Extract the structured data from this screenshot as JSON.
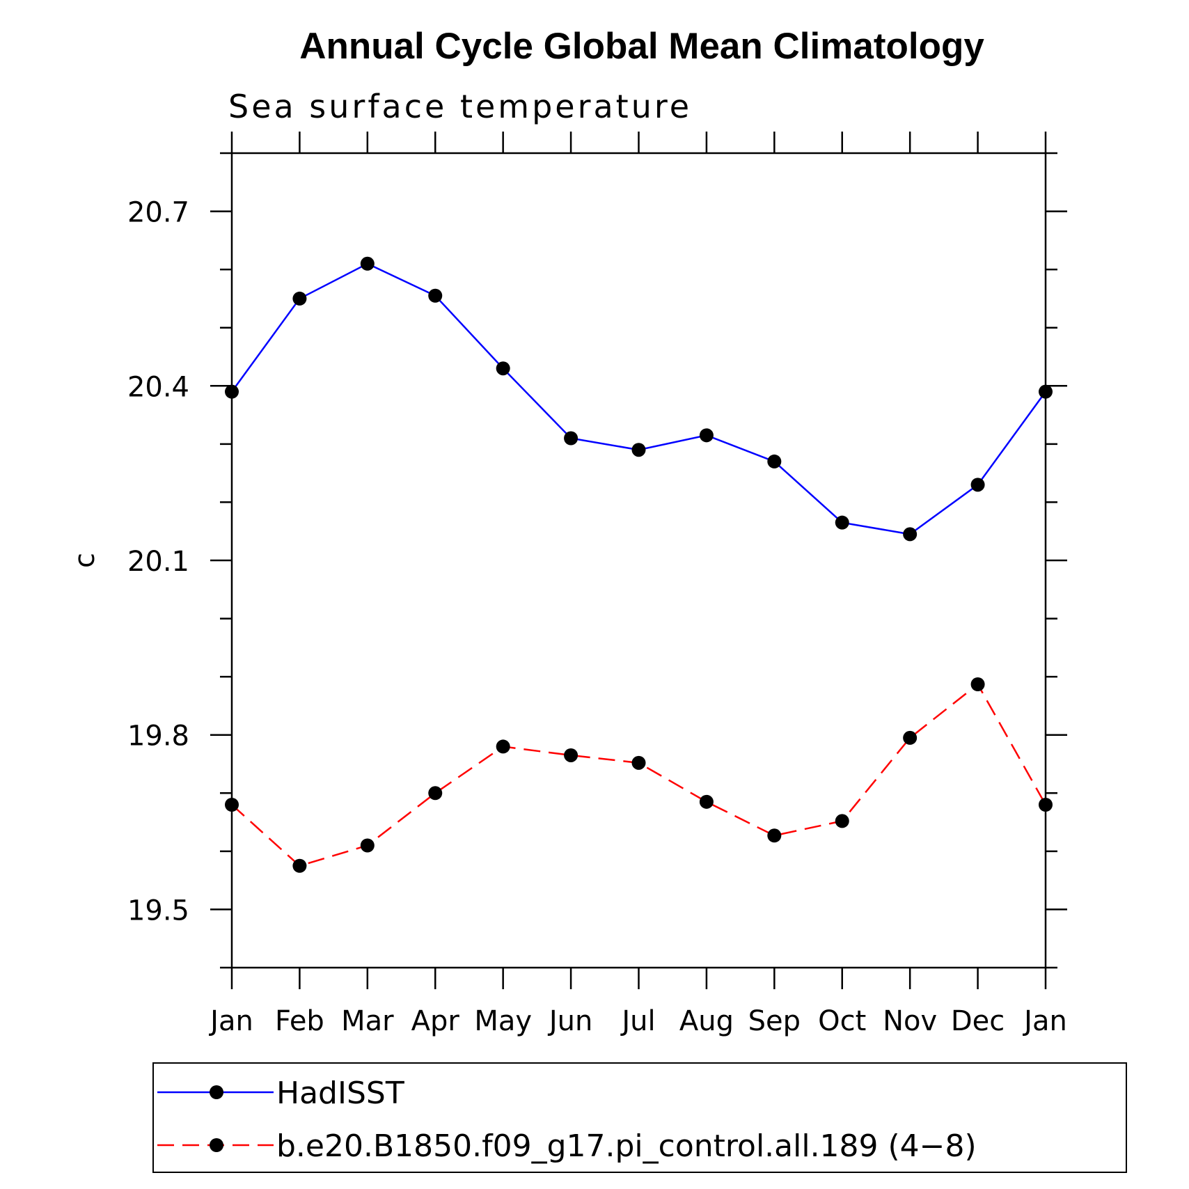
{
  "chart_data": {
    "type": "line",
    "title": "Annual Cycle Global Mean Climatology",
    "subtitle": "Sea surface temperature",
    "ylabel": "c",
    "xlabel": "",
    "categories": [
      "Jan",
      "Feb",
      "Mar",
      "Apr",
      "May",
      "Jun",
      "Jul",
      "Aug",
      "Sep",
      "Oct",
      "Nov",
      "Dec",
      "Jan"
    ],
    "ylim": [
      19.4,
      20.8
    ],
    "yticks": [
      19.5,
      19.8,
      20.1,
      20.4,
      20.7
    ],
    "ytick_labels": [
      "19.5",
      "19.8",
      "20.1",
      "20.4",
      "20.7"
    ],
    "grid": false,
    "legend_position": "bottom",
    "series": [
      {
        "name": "HadISST",
        "color": "#0000ff",
        "dash": "solid",
        "marker": "filled-circle",
        "values": [
          20.39,
          20.55,
          20.61,
          20.555,
          20.43,
          20.31,
          20.29,
          20.315,
          20.27,
          20.165,
          20.145,
          20.23,
          20.39
        ]
      },
      {
        "name": "b.e20.B1850.f09_g17.pi_control.all.189 (4−8)",
        "color": "#ff0000",
        "dash": "dashed",
        "marker": "filled-circle",
        "values": [
          19.68,
          19.575,
          19.61,
          19.7,
          19.78,
          19.765,
          19.752,
          19.685,
          19.627,
          19.652,
          19.795,
          19.887,
          19.68
        ]
      }
    ]
  }
}
